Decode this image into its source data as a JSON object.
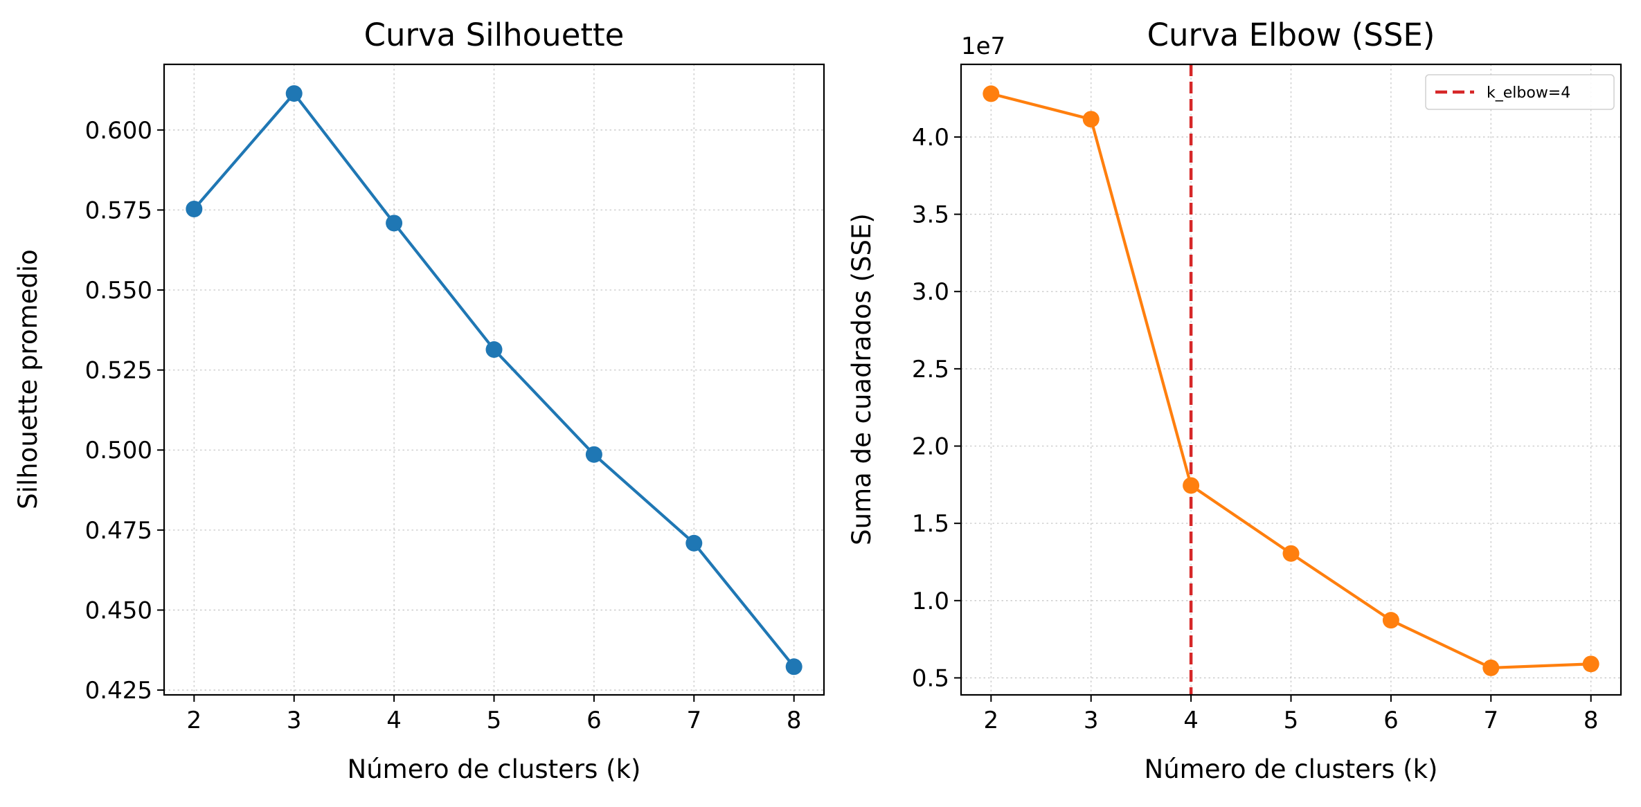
{
  "chart_data": [
    {
      "type": "line",
      "title": "Curva Silhouette",
      "xlabel": "Número de clusters (k)",
      "ylabel": "Silhouette promedio",
      "x": [
        2,
        3,
        4,
        5,
        6,
        7,
        8
      ],
      "series": [
        {
          "values": [
            0.5753,
            0.6114,
            0.5709,
            0.5314,
            0.4986,
            0.4709,
            0.4323
          ],
          "color": "#1f77b4",
          "marker": "circle"
        }
      ],
      "xlim": [
        1.7,
        8.3
      ],
      "ylim": [
        0.4235,
        0.6205
      ],
      "xticks": [
        2,
        3,
        4,
        5,
        6,
        7,
        8
      ],
      "xtick_labels": [
        "2",
        "3",
        "4",
        "5",
        "6",
        "7",
        "8"
      ],
      "yticks": [
        0.425,
        0.45,
        0.475,
        0.5,
        0.525,
        0.55,
        0.575,
        0.6
      ],
      "ytick_labels": [
        "0.425",
        "0.450",
        "0.475",
        "0.500",
        "0.525",
        "0.550",
        "0.575",
        "0.600"
      ],
      "grid": true
    },
    {
      "type": "line",
      "title": "Curva Elbow (SSE)",
      "xlabel": "Número de clusters (k)",
      "ylabel": "Suma de cuadrados (SSE)",
      "y_offset_label": "1e7",
      "x": [
        2,
        3,
        4,
        5,
        6,
        7,
        8
      ],
      "series": [
        {
          "values": [
            4.28,
            4.115,
            1.745,
            1.305,
            0.873,
            0.565,
            0.59
          ],
          "color": "#ff7f0e",
          "marker": "circle"
        }
      ],
      "xlim": [
        1.7,
        8.3
      ],
      "ylim": [
        0.39,
        4.47
      ],
      "xticks": [
        2,
        3,
        4,
        5,
        6,
        7,
        8
      ],
      "xtick_labels": [
        "2",
        "3",
        "4",
        "5",
        "6",
        "7",
        "8"
      ],
      "yticks": [
        0.5,
        1.0,
        1.5,
        2.0,
        2.5,
        3.0,
        3.5,
        4.0
      ],
      "ytick_labels": [
        "0.5",
        "1.0",
        "1.5",
        "2.0",
        "2.5",
        "3.0",
        "3.5",
        "4.0"
      ],
      "grid": true,
      "vline": {
        "x": 4,
        "color": "#d62728",
        "label": "k_elbow=4"
      },
      "legend": {
        "position": "top-right"
      }
    }
  ]
}
